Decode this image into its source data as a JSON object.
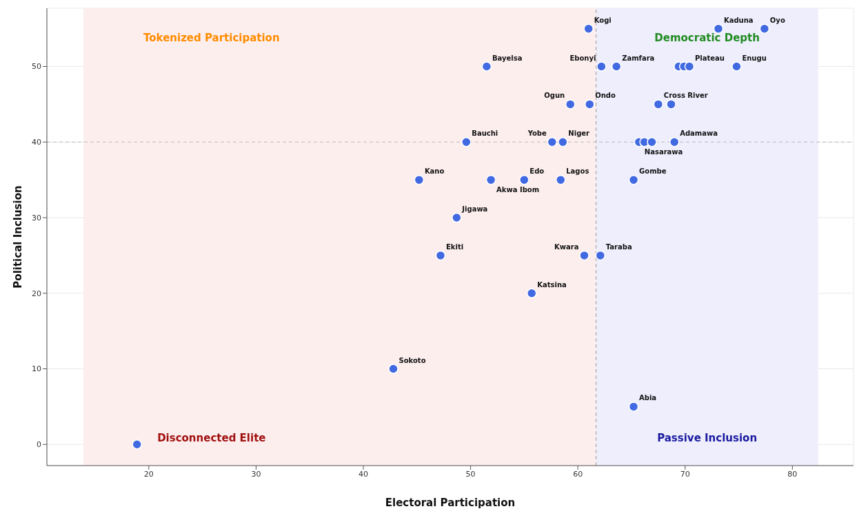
{
  "chart_data": {
    "type": "scatter",
    "xlabel": "Electoral Participation",
    "ylabel": "Political Inclusion",
    "series": [
      {
        "color": "#4169e1",
        "x": [
          61.0,
          73.1,
          77.4,
          51.5,
          62.2,
          63.6,
          69.4,
          69.9,
          70.4,
          74.8,
          59.3,
          61.1,
          67.5,
          68.7,
          49.6,
          57.6,
          58.6,
          65.7,
          66.2,
          66.9,
          69.0,
          45.2,
          51.9,
          55.0,
          58.4,
          65.2,
          48.7,
          47.2,
          60.6,
          62.1,
          55.7,
          42.8,
          65.2,
          18.9
        ],
        "values": [
          55,
          55,
          55,
          50,
          50,
          50,
          50,
          50,
          50,
          50,
          45,
          45,
          45,
          45,
          40,
          40,
          40,
          40,
          40,
          40,
          40,
          35,
          35,
          35,
          35,
          35,
          30,
          25,
          25,
          25,
          20,
          10,
          5,
          0
        ]
      }
    ],
    "annotations": [
      "Tokenized Participation",
      "Democratic Depth",
      "Disconnected Elite",
      "Passive Inclusion",
      {
        "text": "Kogi",
        "x": 61.0,
        "y": 55
      },
      {
        "text": "Kaduna",
        "x": 73.1,
        "y": 55
      },
      {
        "text": "Oyo",
        "x": 77.4,
        "y": 55
      },
      {
        "text": "Bayelsa",
        "x": 51.5,
        "y": 50
      },
      {
        "text": "Ebonyi",
        "x": 62.2,
        "y": 50
      },
      {
        "text": "Zamfara",
        "x": 63.6,
        "y": 50
      },
      {
        "text": "Plateau",
        "x": 70.4,
        "y": 50
      },
      {
        "text": "Enugu",
        "x": 74.8,
        "y": 50
      },
      {
        "text": "Ogun",
        "x": 59.3,
        "y": 45
      },
      {
        "text": "Ondo",
        "x": 61.1,
        "y": 45
      },
      {
        "text": "Cross River",
        "x": 67.5,
        "y": 45
      },
      {
        "text": "Bauchi",
        "x": 49.6,
        "y": 40
      },
      {
        "text": "Yobe",
        "x": 57.6,
        "y": 40
      },
      {
        "text": "Niger",
        "x": 58.6,
        "y": 40
      },
      {
        "text": "Nasarawa",
        "x": 65.7,
        "y": 40
      },
      {
        "text": "Adamawa",
        "x": 69.0,
        "y": 40
      },
      {
        "text": "Kano",
        "x": 45.2,
        "y": 35
      },
      {
        "text": "Akwa Ibom",
        "x": 51.9,
        "y": 35
      },
      {
        "text": "Edo",
        "x": 55.0,
        "y": 35
      },
      {
        "text": "Lagos",
        "x": 58.4,
        "y": 35
      },
      {
        "text": "Gombe",
        "x": 65.2,
        "y": 35
      },
      {
        "text": "Jigawa",
        "x": 48.7,
        "y": 30
      },
      {
        "text": "Ekiti",
        "x": 47.2,
        "y": 25
      },
      {
        "text": "Kwara",
        "x": 60.6,
        "y": 25
      },
      {
        "text": "Taraba",
        "x": 62.1,
        "y": 25
      },
      {
        "text": "Katsina",
        "x": 55.7,
        "y": 20
      },
      {
        "text": "Sokoto",
        "x": 42.8,
        "y": 10
      },
      {
        "text": "Abia",
        "x": 65.2,
        "y": 5
      }
    ],
    "bands": [
      {
        "axis": "x",
        "from": 13.9,
        "to": 61.7,
        "color": "#fdeeee"
      },
      {
        "axis": "x",
        "from": 61.7,
        "to": 82.4,
        "color": "#eeeefd"
      }
    ],
    "ref_lines": [
      {
        "axis": "x",
        "value": 61.7,
        "line_style": "dashed"
      },
      {
        "axis": "y",
        "value": 40,
        "line_style": "dashed"
      }
    ],
    "xlim": [
      10.5,
      85.7
    ],
    "ylim": [
      -2.8,
      57.7
    ],
    "xticks": [
      20,
      30,
      40,
      50,
      60,
      70,
      80
    ],
    "yticks": [
      0,
      10,
      20,
      30,
      40,
      50
    ],
    "grid": true,
    "marker": "circle"
  }
}
